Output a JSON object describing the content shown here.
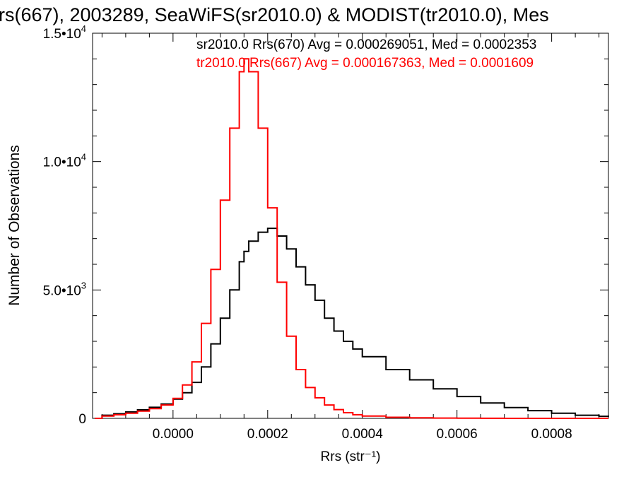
{
  "chart_data": {
    "type": "line",
    "title": "rs(667), 2003289, SeaWiFS(sr2010.0) & MODIST(tr2010.0), Mes",
    "xlabel": "Rrs (str⁻¹)",
    "ylabel": "Number of Observations",
    "xlim": [
      -0.00017,
      0.00092
    ],
    "ylim": [
      0,
      15000
    ],
    "grid": false,
    "legend_placement": "top-right",
    "x_ticks": [
      {
        "value": 0.0,
        "label": "0.0000"
      },
      {
        "value": 0.0002,
        "label": "0.0002"
      },
      {
        "value": 0.0004,
        "label": "0.0004"
      },
      {
        "value": 0.0006,
        "label": "0.0006"
      },
      {
        "value": 0.0008,
        "label": "0.0008"
      }
    ],
    "y_ticks": [
      {
        "value": 0,
        "mantissa": "0",
        "exponent": ""
      },
      {
        "value": 5000,
        "mantissa": "5.0•10",
        "exponent": "3"
      },
      {
        "value": 10000,
        "mantissa": "1.0•10",
        "exponent": "4"
      },
      {
        "value": 15000,
        "mantissa": "1.5•10",
        "exponent": "4"
      }
    ],
    "x": [
      -0.000165,
      -0.00015,
      -0.000125,
      -0.0001,
      -7.5e-05,
      -5e-05,
      -2.5e-05,
      0.0,
      2e-05,
      4e-05,
      6e-05,
      8e-05,
      0.0001,
      0.00012,
      0.00014,
      0.00015,
      0.00016,
      0.00018,
      0.0002,
      0.00022,
      0.00024,
      0.00026,
      0.00028,
      0.0003,
      0.00032,
      0.00034,
      0.00036,
      0.00038,
      0.0004,
      0.00045,
      0.0005,
      0.00055,
      0.0006,
      0.00065,
      0.0007,
      0.00075,
      0.0008,
      0.00085,
      0.0009,
      0.00092
    ],
    "series": [
      {
        "name": "sr2010.0 Rrs(670) Avg = 0.000269051, Med = 0.0002353",
        "color": "#000000",
        "values": [
          0,
          120,
          180,
          250,
          330,
          430,
          560,
          750,
          1000,
          1400,
          2000,
          2900,
          3900,
          5000,
          6100,
          6500,
          6900,
          7250,
          7400,
          7100,
          6600,
          5900,
          5200,
          4600,
          3900,
          3400,
          3000,
          2700,
          2400,
          1900,
          1500,
          1150,
          850,
          600,
          420,
          300,
          200,
          120,
          80,
          60
        ]
      },
      {
        "name": "tr2010.0 Rrs(667) Avg = 0.000167363, Med = 0.0001609",
        "color": "#ff0000",
        "values": [
          0,
          90,
          140,
          200,
          280,
          380,
          520,
          780,
          1300,
          2200,
          3700,
          5800,
          8500,
          11300,
          13500,
          14000,
          13500,
          11300,
          8200,
          5300,
          3200,
          1900,
          1200,
          800,
          520,
          340,
          220,
          140,
          90,
          40,
          20,
          10,
          5,
          2,
          1,
          0,
          0,
          0,
          0,
          0
        ]
      }
    ]
  }
}
